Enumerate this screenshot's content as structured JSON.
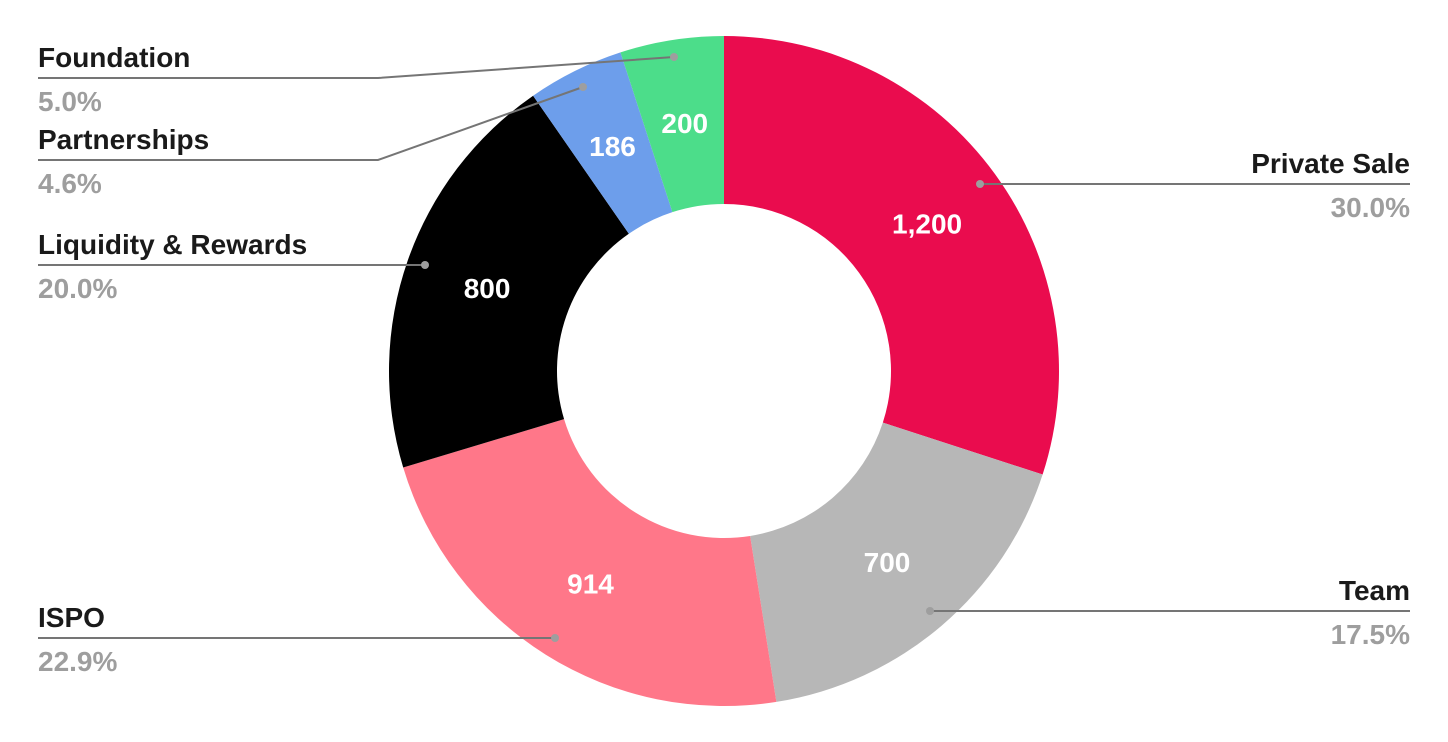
{
  "chart_data": {
    "type": "pie",
    "variant": "donut",
    "start_angle": "top, clockwise",
    "legend": "none (callout labels)",
    "slices": [
      {
        "label": "Private Sale",
        "value": 1200,
        "value_label": "1,200",
        "percent": "30.0%",
        "color": "#EA0C4E"
      },
      {
        "label": "Team",
        "value": 700,
        "value_label": "700",
        "percent": "17.5%",
        "color": "#B7B7B7"
      },
      {
        "label": "ISPO",
        "value": 914,
        "value_label": "914",
        "percent": "22.9%",
        "color": "#FF7789"
      },
      {
        "label": "Liquidity & Rewards",
        "value": 800,
        "value_label": "800",
        "percent": "20.0%",
        "color": "#000000"
      },
      {
        "label": "Partnerships",
        "value": 186,
        "value_label": "186",
        "percent": "4.6%",
        "color": "#6D9EEB"
      },
      {
        "label": "Foundation",
        "value": 200,
        "value_label": "200",
        "percent": "5.0%",
        "color": "#4CDD8A"
      }
    ]
  }
}
